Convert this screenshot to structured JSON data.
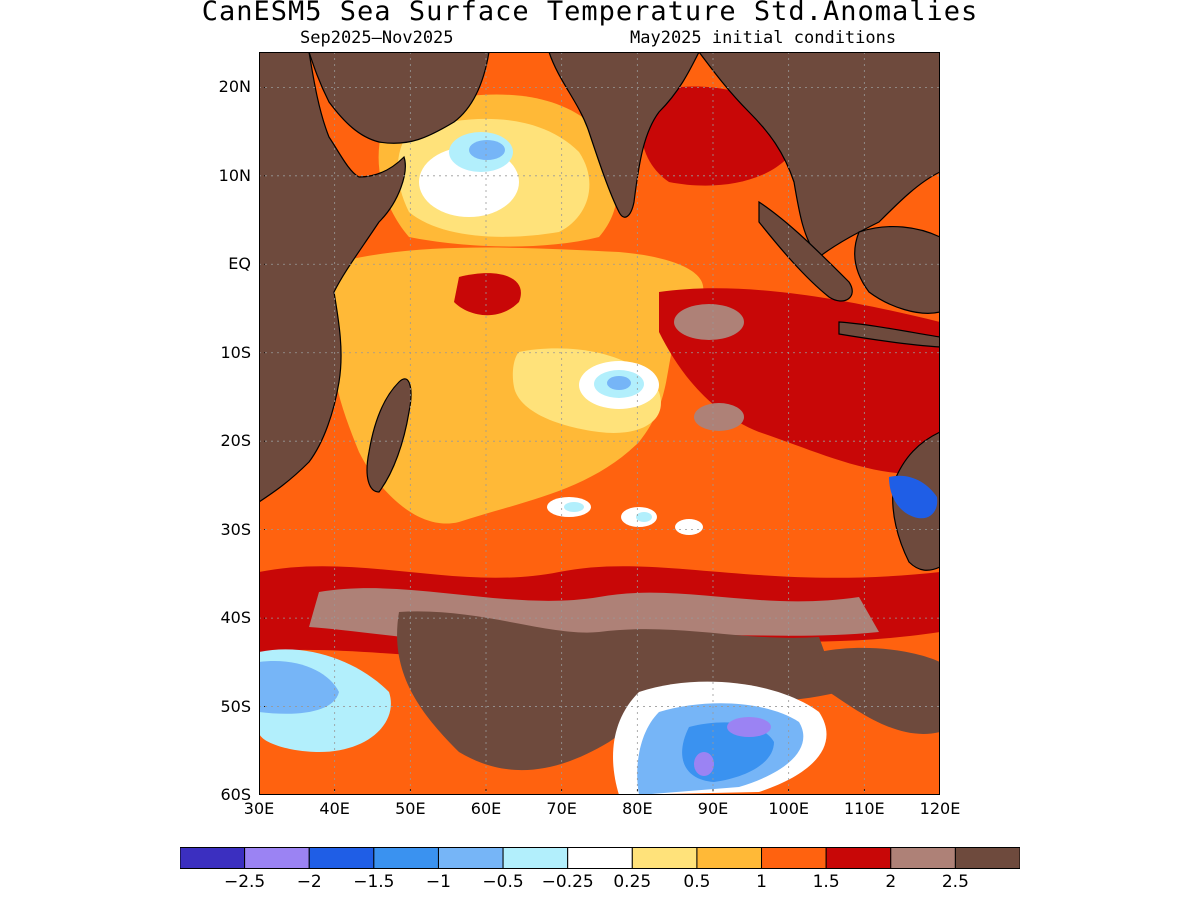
{
  "header": {
    "title": "CanESM5 Sea Surface Temperature Std.Anomalies",
    "period": "Sep2025–Nov2025",
    "init": "May2025 initial conditions"
  },
  "map": {
    "lat_labels": [
      "20N",
      "10N",
      "EQ",
      "10S",
      "20S",
      "30S",
      "40S",
      "50S",
      "60S"
    ],
    "lat_values": [
      20,
      10,
      0,
      -10,
      -20,
      -30,
      -40,
      -50,
      -60
    ],
    "lon_labels": [
      "30E",
      "40E",
      "50E",
      "60E",
      "70E",
      "80E",
      "90E",
      "100E",
      "110E",
      "120E"
    ],
    "lon_values": [
      30,
      40,
      50,
      60,
      70,
      80,
      90,
      100,
      110,
      120
    ],
    "lat_range": [
      -60,
      24
    ],
    "lon_range": [
      30,
      120
    ],
    "land_color": "#6e4a3d",
    "coastline_color": "#000000"
  },
  "colorbar": {
    "colors": [
      "#3b2fc0",
      "#9b83f3",
      "#1f5ee6",
      "#3a92f0",
      "#76b5f7",
      "#b2effc",
      "#ffffff",
      "#ffe27a",
      "#ffb937",
      "#ff620f",
      "#c80707",
      "#ae8177",
      "#6e4a3d"
    ],
    "labels": [
      "−2.5",
      "−2",
      "−1.5",
      "−1",
      "−0.5",
      "−0.25",
      "0.25",
      "0.5",
      "1",
      "1.5",
      "2",
      "2.5"
    ]
  }
}
